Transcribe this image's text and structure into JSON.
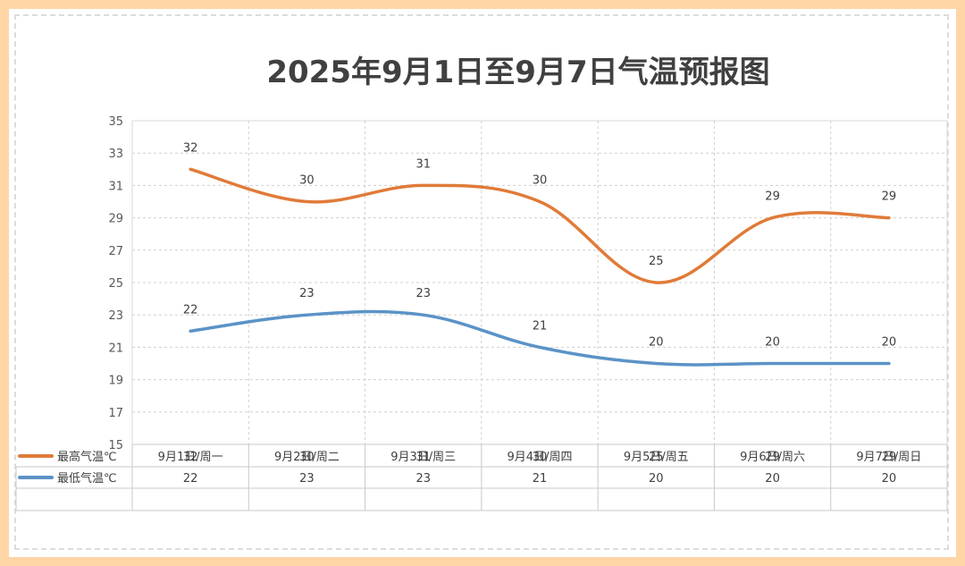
{
  "chart_data": {
    "type": "line",
    "title": "2025年9月1日至9月7日气温预报图",
    "categories": [
      "9月1日/周一",
      "9月2日/周二",
      "9月3日/周三",
      "9月4日/周四",
      "9月5日/周五",
      "9月6日/周六",
      "9月7日/周日"
    ],
    "series": [
      {
        "name": "最高气温℃",
        "values": [
          32,
          30,
          31,
          30,
          25,
          29,
          29
        ],
        "color": "#e07b39"
      },
      {
        "name": "最低气温℃",
        "values": [
          22,
          23,
          23,
          21,
          20,
          20,
          20
        ],
        "color": "#5b93c7"
      }
    ],
    "ylim": [
      15,
      35
    ],
    "yticks": [
      15,
      17,
      19,
      21,
      23,
      25,
      27,
      29,
      31,
      33,
      35
    ],
    "grid": true,
    "data_table": true,
    "smooth": true
  }
}
